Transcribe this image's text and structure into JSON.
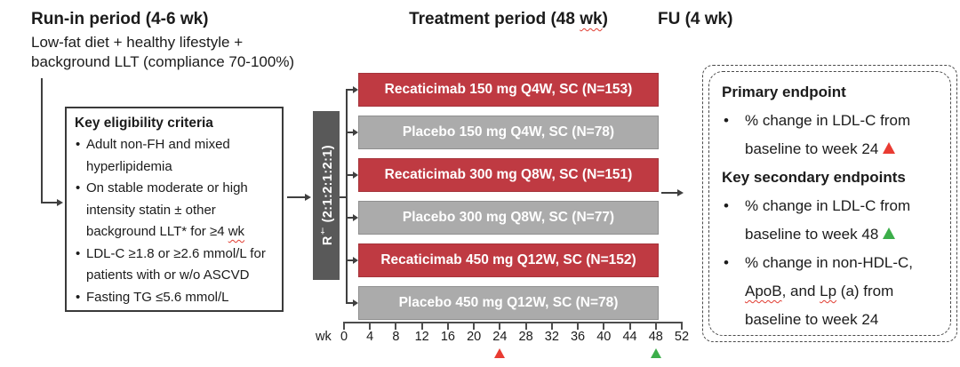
{
  "headings": {
    "runin_title": "Run-in period (4-6 wk)",
    "runin_line1": "Low-fat diet + healthy lifestyle +",
    "runin_line2": "background LLT (compliance 70-100%)",
    "treatment_pre": "Treatment period (48 ",
    "treatment_wavy": "wk",
    "treatment_post": ")",
    "fu": "FU (4 wk)"
  },
  "eligibility": {
    "title": "Key eligibility criteria",
    "item1": "Adult non-FH and mixed hyperlipidemia",
    "item2_pre": "On stable moderate or high intensity statin ± other background LLT* for ≥4 ",
    "item2_wavy": "wk",
    "item3": "LDL-C ≥1.8 or ≥2.6 mmol/L for patients with or w/o ASCVD",
    "item4": "Fasting TG ≤5.6 mmol/L"
  },
  "randomization": {
    "label_r": "R",
    "label_sup": "†",
    "label_ratio": " (2:1:2:1:2:1)"
  },
  "bars": [
    {
      "label": "Recaticimab 150 mg Q4W, SC (N=153)",
      "type": "drug"
    },
    {
      "label": "Placebo 150 mg Q4W, SC (N=78)",
      "type": "placebo"
    },
    {
      "label": "Recaticimab 300 mg Q8W, SC (N=151)",
      "type": "drug"
    },
    {
      "label": "Placebo 300 mg Q8W, SC (N=77)",
      "type": "placebo"
    },
    {
      "label": "Recaticimab 450 mg Q12W, SC (N=152)",
      "type": "drug"
    },
    {
      "label": "Placebo 450 mg Q12W, SC (N=78)",
      "type": "placebo"
    }
  ],
  "axis": {
    "unit_label": "wk",
    "weeks": [
      0,
      4,
      8,
      12,
      16,
      20,
      24,
      28,
      32,
      36,
      40,
      44,
      48,
      52
    ],
    "max_week": 52,
    "markers": [
      {
        "week": 24,
        "color": "#e93b32",
        "name": "primary-endpoint-week"
      },
      {
        "week": 48,
        "color": "#3cae4a",
        "name": "secondary-endpoint-week"
      }
    ]
  },
  "endpoints": {
    "primary_title": "Primary endpoint",
    "primary_item_text": "% change in LDL-C from baseline to week 24",
    "secondary_title": "Key secondary endpoints",
    "secondary_item1_text": "% change in LDL-C from baseline to week 48",
    "secondary_item2_pre": "% change in non-HDL-C, ",
    "secondary_item2_wavy1": "ApoB",
    "secondary_item2_mid": ", and ",
    "secondary_item2_wavy2": "Lp",
    "secondary_item2_post": " (a) from baseline to week 24"
  },
  "colors": {
    "drug_bar": "#bf3a42",
    "placebo_bar": "#ababab",
    "randomization_bar": "#595959",
    "marker_red": "#e93b32",
    "marker_green": "#3cae4a"
  }
}
